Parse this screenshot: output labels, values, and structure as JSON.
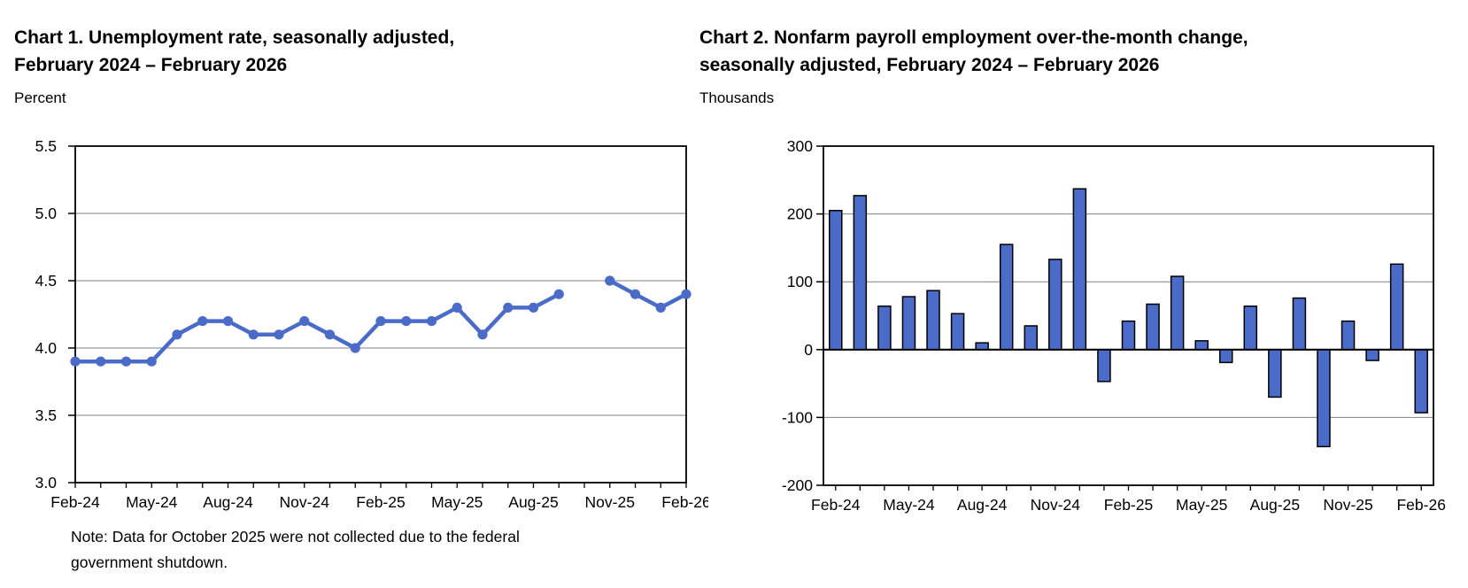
{
  "page": {
    "background": "#ffffff"
  },
  "chart1": {
    "title_line1": "Chart 1. Unemployment rate, seasonally adjusted,",
    "title_line2": "February 2024 – February 2026",
    "unit_label": "Percent",
    "note_line1": "Note: Data for October 2025 were not collected due to the federal",
    "note_line2": "government shutdown."
  },
  "chart2": {
    "title_line1": "Chart 2. Nonfarm payroll employment over-the-month change,",
    "title_line2": "seasonally adjusted, February 2024 – February 2026",
    "unit_label": "Thousands"
  },
  "chart_data": [
    {
      "type": "line",
      "title": "Chart 1. Unemployment rate, seasonally adjusted, February 2024 – February 2026",
      "ylabel": "Percent",
      "categories": [
        "Feb-24",
        "Mar-24",
        "Apr-24",
        "May-24",
        "Jun-24",
        "Jul-24",
        "Aug-24",
        "Sep-24",
        "Oct-24",
        "Nov-24",
        "Dec-24",
        "Jan-25",
        "Feb-25",
        "Mar-25",
        "Apr-25",
        "May-25",
        "Jun-25",
        "Jul-25",
        "Aug-25",
        "Sep-25",
        "Oct-25",
        "Nov-25",
        "Dec-25",
        "Jan-26",
        "Feb-26"
      ],
      "values": [
        3.9,
        3.9,
        3.9,
        3.9,
        4.1,
        4.2,
        4.2,
        4.1,
        4.1,
        4.2,
        4.1,
        4.0,
        4.2,
        4.2,
        4.2,
        4.3,
        4.1,
        4.3,
        4.3,
        4.4,
        null,
        4.5,
        4.4,
        4.3,
        4.4
      ],
      "missing_month": "Oct-25",
      "x_tick_labels": [
        "Feb-24",
        "May-24",
        "Aug-24",
        "Nov-24",
        "Feb-25",
        "May-25",
        "Aug-25",
        "Nov-25",
        "Feb-26"
      ],
      "x_tick_every": 3,
      "y_tick_labels": [
        "5.5",
        "5.0",
        "4.5",
        "4.0",
        "3.5",
        "3.0"
      ],
      "ylim": [
        3.0,
        5.5
      ],
      "grid": true,
      "legend": "none",
      "line_color": "#4b6bc8",
      "note": "Note: Data for October 2025 were not collected due to the federal government shutdown."
    },
    {
      "type": "bar",
      "title": "Chart 2. Nonfarm payroll employment over-the-month change, seasonally adjusted, February 2024 – February 2026",
      "ylabel": "Thousands",
      "categories": [
        "Feb-24",
        "Mar-24",
        "Apr-24",
        "May-24",
        "Jun-24",
        "Jul-24",
        "Aug-24",
        "Sep-24",
        "Oct-24",
        "Nov-24",
        "Dec-24",
        "Jan-25",
        "Feb-25",
        "Mar-25",
        "Apr-25",
        "May-25",
        "Jun-25",
        "Jul-25",
        "Aug-25",
        "Sep-25",
        "Oct-25",
        "Nov-25",
        "Dec-25",
        "Jan-26",
        "Feb-26"
      ],
      "values": [
        205,
        227,
        64,
        78,
        87,
        53,
        10,
        155,
        35,
        133,
        237,
        -47,
        42,
        67,
        108,
        13,
        -19,
        64,
        -70,
        76,
        -143,
        42,
        -16,
        126,
        -93
      ],
      "x_tick_labels": [
        "Feb-24",
        "May-24",
        "Aug-24",
        "Nov-24",
        "Feb-25",
        "May-25",
        "Aug-25",
        "Nov-25",
        "Feb-26"
      ],
      "x_tick_every": 3,
      "y_tick_labels": [
        "300",
        "200",
        "100",
        "0",
        "-100",
        "-200"
      ],
      "ylim": [
        -200,
        300
      ],
      "grid": true,
      "legend": "none",
      "bar_color": "#4b6bc8",
      "bar_border_color": "#000000"
    }
  ],
  "colors": {
    "series_blue": "#4b6bc8",
    "gridline_gray": "#7f7f7f",
    "axis_black": "#000000"
  }
}
